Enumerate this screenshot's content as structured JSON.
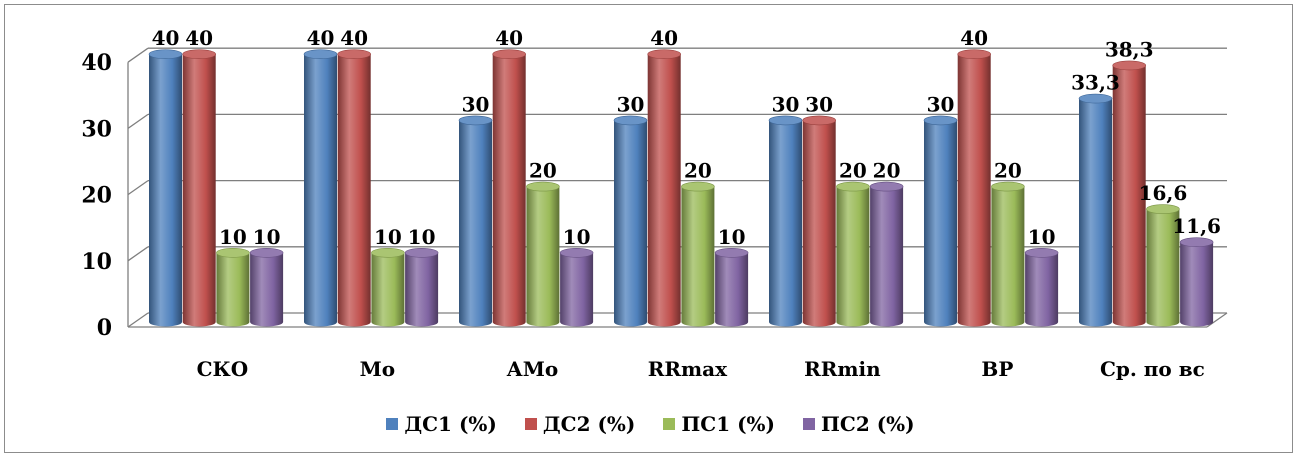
{
  "chart_data": {
    "type": "bar",
    "categories": [
      "СКО",
      "Мо",
      "АМо",
      "RRmax",
      "RRmin",
      "ВР",
      "Ср. по вс"
    ],
    "series": [
      {
        "name": "ДС1 (%)",
        "color": "#4f81bd",
        "values": [
          40,
          40,
          30,
          30,
          30,
          30,
          33.3
        ],
        "labels": [
          "40",
          "40",
          "30",
          "30",
          "30",
          "30",
          "33,3"
        ]
      },
      {
        "name": "ДС2 (%)",
        "color": "#c0504d",
        "values": [
          40,
          40,
          40,
          40,
          30,
          40,
          38.3
        ],
        "labels": [
          "40",
          "40",
          "40",
          "40",
          "30",
          "40",
          "38,3"
        ]
      },
      {
        "name": "ПС1 (%)",
        "color": "#9bbb59",
        "values": [
          10,
          10,
          20,
          20,
          20,
          20,
          16.6
        ],
        "labels": [
          "10",
          "10",
          "20",
          "20",
          "20",
          "20",
          "16,6"
        ]
      },
      {
        "name": "ПС2 (%)",
        "color": "#8064a2",
        "values": [
          10,
          10,
          10,
          10,
          20,
          10,
          11.6
        ],
        "labels": [
          "10",
          "10",
          "10",
          "10",
          "20",
          "10",
          "11,6"
        ]
      }
    ],
    "yticks": [
      "0",
      "10",
      "20",
      "30",
      "40"
    ],
    "ylim": [
      0,
      40
    ],
    "grid": true,
    "legend_position": "bottom",
    "style": "3d-cylinder"
  }
}
